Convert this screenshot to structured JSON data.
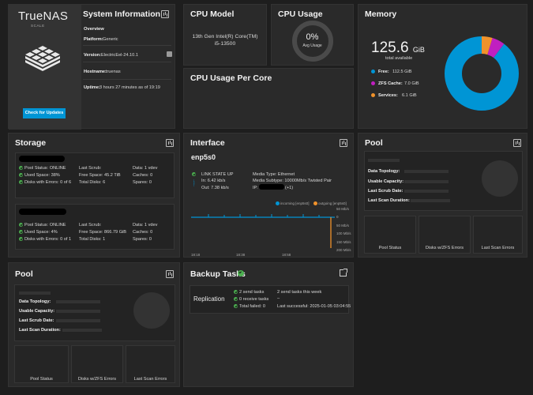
{
  "colors": {
    "accent": "#0095d5",
    "ok": "#4caf50",
    "zfs": "#c01fc0",
    "services": "#f0922b"
  },
  "system": {
    "logo_text": "TrueNAS",
    "logo_sub": "SCALE",
    "title": "System Information",
    "check_updates": "Check for Updates",
    "overview": "Overview",
    "platform_label": "Platform:",
    "platform": "Generic",
    "version_label": "Version:",
    "version": "ElectricEel-24.10.1",
    "hostname_label": "Hostname:",
    "hostname": "truenas",
    "uptime_label": "Uptime:",
    "uptime": "3 hours 27 minutes as of 19:19"
  },
  "cpu_model": {
    "title": "CPU Model",
    "line1": "13th Gen Intel(R) Core(TM)",
    "line2": "i5-13500"
  },
  "cpu_usage": {
    "title": "CPU Usage",
    "value": "0%",
    "caption": "Avg Usage"
  },
  "cpu_per_core": {
    "title": "CPU Usage Per Core"
  },
  "memory": {
    "title": "Memory",
    "total": "125.6",
    "unit": "GiB",
    "caption": "total available",
    "free_label": "Free:",
    "free": "112.5 GiB",
    "zfs_label": "ZFS Cache:",
    "zfs": "7.0 GiB",
    "services_label": "Services:",
    "services": "6.1 GiB",
    "donut": [
      112.5,
      7.0,
      6.1
    ]
  },
  "storage": {
    "title": "Storage",
    "pools": [
      {
        "status": "Pool Status: ONLINE",
        "used": "Used Space: 38%",
        "errors": "Disks with Errors: 0 of 6",
        "scrub": "Last Scrub:",
        "free": "Free Space: 45.2 TiB",
        "disks": "Total Disks: 6",
        "data": "Data: 1 vdev",
        "caches": "Caches: 0",
        "spares": "Spares: 0"
      },
      {
        "status": "Pool Status: ONLINE",
        "used": "Used Space: 4%",
        "errors": "Disks with Errors: 0 of 1",
        "scrub": "Last Scrub:",
        "free": "Free Space: 866.79 GiB",
        "disks": "Total Disks: 1",
        "data": "Data: 1 vdev",
        "caches": "Caches: 0",
        "spares": "Spares: 0"
      }
    ]
  },
  "interface": {
    "title": "Interface",
    "name": "enp5s0",
    "link": "LINK STATE UP",
    "in": "In:  6.42 kb/s",
    "out": "Out:  7.38 kb/s",
    "media_type": "Media Type:  Ethernet",
    "media_subtype": "Media Subtype:  10000Mb/s Twisted Pair",
    "ip_label": "IP:",
    "ip_suffix": "(+1)",
    "legend_in": "incoming [enp5s0]",
    "legend_out": "outgoing [enp5s0]",
    "y_ticks": [
      "50 Mb/s",
      "0",
      "50 Mb/s",
      "100 Mb/s",
      "150 Mb/s",
      "200 Mb/s"
    ],
    "x_ticks": [
      "18:18",
      "18:38",
      "18:58"
    ]
  },
  "pool_right": {
    "title": "Pool",
    "topology": "Data Topology:",
    "usable": "Usable Capacity:",
    "scrub": "Last Scrub Date:",
    "scan": "Last Scan Duration:",
    "box1": "Pool Status",
    "box2": "Disks w/ZFS Errors",
    "box3": "Last Scan Errors"
  },
  "pool_left": {
    "title": "Pool",
    "topology": "Data Topology:",
    "usable": "Usable Capacity:",
    "scrub": "Last Scrub Date:",
    "scan": "Last Scan Duration:",
    "box1": "Pool Status",
    "box2": "Disks w/ZFS Errors",
    "box3": "Last Scan Errors"
  },
  "backup": {
    "title": "Backup Tasks",
    "label": "Replication",
    "send": "2 send tasks",
    "receive": "0 receive tasks",
    "failed": "Total failed: 0",
    "week": "2 send tasks this week",
    "dash": "–",
    "last": "Last successful: 2025-01-05 03:04:55"
  }
}
